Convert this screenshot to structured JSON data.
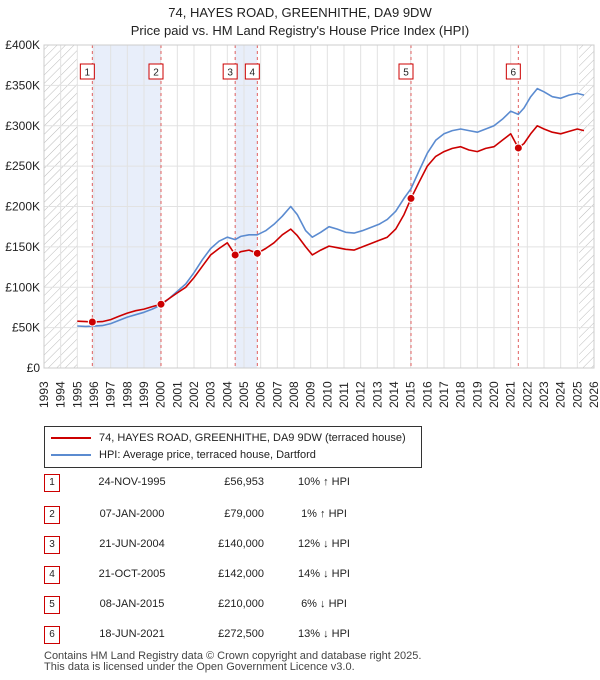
{
  "chart_data": {
    "type": "line",
    "title": "74, HAYES ROAD, GREENHITHE, DA9 9DW",
    "subtitle": "Price paid vs. HM Land Registry's House Price Index (HPI)",
    "xlim": [
      1993,
      2026
    ],
    "ylim": [
      0,
      400000
    ],
    "y_ticks": [
      0,
      50000,
      100000,
      150000,
      200000,
      250000,
      300000,
      350000,
      400000
    ],
    "y_tick_labels": [
      "£0",
      "£50K",
      "£100K",
      "£150K",
      "£200K",
      "£250K",
      "£300K",
      "£350K",
      "£400K"
    ],
    "x_ticks": [
      1993,
      1994,
      1995,
      1996,
      1997,
      1998,
      1999,
      2000,
      2001,
      2002,
      2003,
      2004,
      2005,
      2006,
      2007,
      2008,
      2009,
      2010,
      2011,
      2012,
      2013,
      2014,
      2015,
      2016,
      2017,
      2018,
      2019,
      2020,
      2021,
      2022,
      2023,
      2024,
      2025,
      2026
    ],
    "hatch_ranges": [
      [
        1993,
        1995.0
      ],
      [
        2025.1,
        2026
      ]
    ],
    "shaded_ranges": [
      [
        1995.9,
        2000.02
      ],
      [
        2004.47,
        2005.8
      ]
    ],
    "series": [
      {
        "name": "74, HAYES ROAD, GREENHITHE, DA9 9DW (terraced house)",
        "color": "#cc0000",
        "points": [
          [
            1995.0,
            58000
          ],
          [
            1995.5,
            57500
          ],
          [
            1995.9,
            56953
          ],
          [
            1996.5,
            57500
          ],
          [
            1997.0,
            60000
          ],
          [
            1997.5,
            64000
          ],
          [
            1998.0,
            68000
          ],
          [
            1998.5,
            71000
          ],
          [
            1999.0,
            73000
          ],
          [
            1999.5,
            76000
          ],
          [
            2000.02,
            79000
          ],
          [
            2000.5,
            86000
          ],
          [
            2001.0,
            93000
          ],
          [
            2001.5,
            100000
          ],
          [
            2002.0,
            112000
          ],
          [
            2002.5,
            126000
          ],
          [
            2003.0,
            140000
          ],
          [
            2003.5,
            148000
          ],
          [
            2004.0,
            155000
          ],
          [
            2004.47,
            140000
          ],
          [
            2004.8,
            144000
          ],
          [
            2005.3,
            146000
          ],
          [
            2005.8,
            142000
          ],
          [
            2006.3,
            148000
          ],
          [
            2006.8,
            155000
          ],
          [
            2007.3,
            165000
          ],
          [
            2007.8,
            172000
          ],
          [
            2008.2,
            164000
          ],
          [
            2008.7,
            150000
          ],
          [
            2009.1,
            140000
          ],
          [
            2009.6,
            146000
          ],
          [
            2010.1,
            151000
          ],
          [
            2010.6,
            149000
          ],
          [
            2011.1,
            147000
          ],
          [
            2011.6,
            146000
          ],
          [
            2012.1,
            150000
          ],
          [
            2012.6,
            154000
          ],
          [
            2013.1,
            158000
          ],
          [
            2013.6,
            162000
          ],
          [
            2014.1,
            172000
          ],
          [
            2014.6,
            190000
          ],
          [
            2015.02,
            210000
          ],
          [
            2015.5,
            230000
          ],
          [
            2016.0,
            250000
          ],
          [
            2016.5,
            262000
          ],
          [
            2017.0,
            268000
          ],
          [
            2017.5,
            272000
          ],
          [
            2018.0,
            274000
          ],
          [
            2018.5,
            270000
          ],
          [
            2019.0,
            268000
          ],
          [
            2019.5,
            272000
          ],
          [
            2020.0,
            274000
          ],
          [
            2020.5,
            282000
          ],
          [
            2021.0,
            290000
          ],
          [
            2021.46,
            272500
          ],
          [
            2021.8,
            278000
          ],
          [
            2022.2,
            290000
          ],
          [
            2022.6,
            300000
          ],
          [
            2023.0,
            296000
          ],
          [
            2023.5,
            292000
          ],
          [
            2024.0,
            290000
          ],
          [
            2024.5,
            293000
          ],
          [
            2025.0,
            296000
          ],
          [
            2025.4,
            294000
          ]
        ]
      },
      {
        "name": "HPI: Average price, terraced house, Dartford",
        "color": "#5b8bd0",
        "points": [
          [
            1995.0,
            52000
          ],
          [
            1995.5,
            51500
          ],
          [
            1995.9,
            51800
          ],
          [
            1996.5,
            52500
          ],
          [
            1997.0,
            55000
          ],
          [
            1997.5,
            59000
          ],
          [
            1998.0,
            63000
          ],
          [
            1998.5,
            66000
          ],
          [
            1999.0,
            69000
          ],
          [
            1999.5,
            73000
          ],
          [
            2000.02,
            78000
          ],
          [
            2000.5,
            86000
          ],
          [
            2001.0,
            95000
          ],
          [
            2001.5,
            104000
          ],
          [
            2002.0,
            118000
          ],
          [
            2002.5,
            134000
          ],
          [
            2003.0,
            148000
          ],
          [
            2003.5,
            157000
          ],
          [
            2004.0,
            162000
          ],
          [
            2004.47,
            159000
          ],
          [
            2004.8,
            163000
          ],
          [
            2005.3,
            165000
          ],
          [
            2005.8,
            165000
          ],
          [
            2006.3,
            170000
          ],
          [
            2006.8,
            178000
          ],
          [
            2007.3,
            188000
          ],
          [
            2007.8,
            200000
          ],
          [
            2008.2,
            190000
          ],
          [
            2008.7,
            170000
          ],
          [
            2009.1,
            162000
          ],
          [
            2009.6,
            168000
          ],
          [
            2010.1,
            175000
          ],
          [
            2010.6,
            172000
          ],
          [
            2011.1,
            168000
          ],
          [
            2011.6,
            167000
          ],
          [
            2012.1,
            170000
          ],
          [
            2012.6,
            174000
          ],
          [
            2013.1,
            178000
          ],
          [
            2013.6,
            184000
          ],
          [
            2014.1,
            194000
          ],
          [
            2014.6,
            210000
          ],
          [
            2015.02,
            222000
          ],
          [
            2015.5,
            244000
          ],
          [
            2016.0,
            266000
          ],
          [
            2016.5,
            282000
          ],
          [
            2017.0,
            290000
          ],
          [
            2017.5,
            294000
          ],
          [
            2018.0,
            296000
          ],
          [
            2018.5,
            294000
          ],
          [
            2019.0,
            292000
          ],
          [
            2019.5,
            296000
          ],
          [
            2020.0,
            300000
          ],
          [
            2020.5,
            308000
          ],
          [
            2021.0,
            318000
          ],
          [
            2021.46,
            314000
          ],
          [
            2021.8,
            322000
          ],
          [
            2022.2,
            336000
          ],
          [
            2022.6,
            346000
          ],
          [
            2023.0,
            342000
          ],
          [
            2023.5,
            336000
          ],
          [
            2024.0,
            334000
          ],
          [
            2024.5,
            338000
          ],
          [
            2025.0,
            340000
          ],
          [
            2025.4,
            338000
          ]
        ]
      }
    ],
    "sale_markers": [
      {
        "label": "1",
        "x": 1995.9,
        "y": 56953
      },
      {
        "label": "2",
        "x": 2000.02,
        "y": 79000
      },
      {
        "label": "3",
        "x": 2004.47,
        "y": 140000
      },
      {
        "label": "4",
        "x": 2005.8,
        "y": 142000
      },
      {
        "label": "5",
        "x": 2015.02,
        "y": 210000
      },
      {
        "label": "6",
        "x": 2021.46,
        "y": 272500
      }
    ]
  },
  "legend": {
    "property_label": "74, HAYES ROAD, GREENHITHE, DA9 9DW (terraced house)",
    "hpi_label": "HPI: Average price, terraced house, Dartford",
    "property_color": "#cc0000",
    "hpi_color": "#5b8bd0"
  },
  "sales": [
    {
      "num": "1",
      "date": "24-NOV-1995",
      "price": "£56,953",
      "hpi": "10% ↑ HPI"
    },
    {
      "num": "2",
      "date": "07-JAN-2000",
      "price": "£79,000",
      "hpi": "1% ↑ HPI"
    },
    {
      "num": "3",
      "date": "21-JUN-2004",
      "price": "£140,000",
      "hpi": "12% ↓ HPI"
    },
    {
      "num": "4",
      "date": "21-OCT-2005",
      "price": "£142,000",
      "hpi": "14% ↓ HPI"
    },
    {
      "num": "5",
      "date": "08-JAN-2015",
      "price": "£210,000",
      "hpi": "6% ↓ HPI"
    },
    {
      "num": "6",
      "date": "18-JUN-2021",
      "price": "£272,500",
      "hpi": "13% ↓ HPI"
    }
  ],
  "footer": {
    "line1": "Contains HM Land Registry data © Crown copyright and database right 2025.",
    "line2": "This data is licensed under the Open Government Licence v3.0."
  }
}
